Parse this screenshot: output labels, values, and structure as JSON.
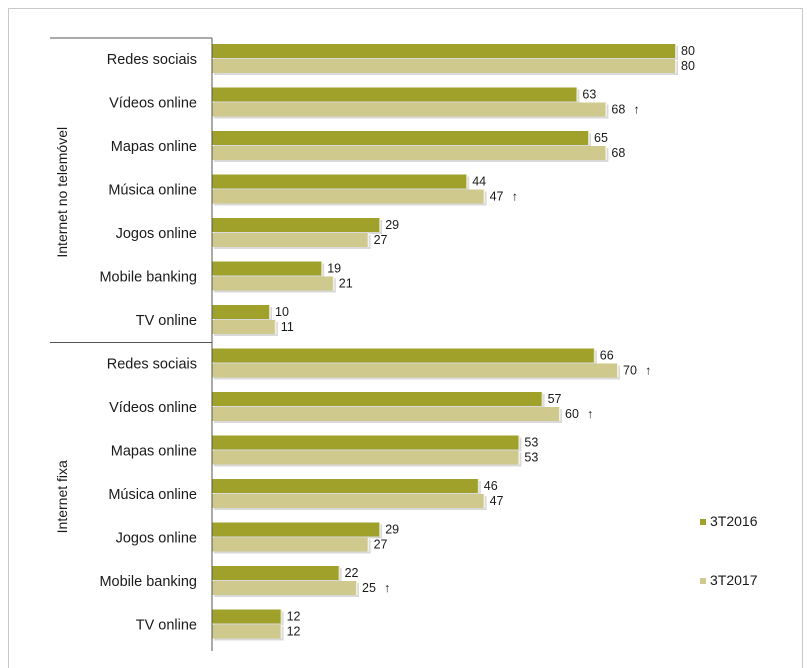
{
  "chart_data": {
    "type": "bar",
    "orientation": "horizontal",
    "title": "",
    "legend_position": "right",
    "grid": false,
    "series": [
      {
        "name": "3T2016",
        "color": "#a0a12a"
      },
      {
        "name": "3T2017",
        "color": "#cfc98d"
      }
    ],
    "groups": [
      {
        "label": "Internet no telemóvel",
        "categories": [
          {
            "label": "Redes sociais",
            "values": [
              80,
              80
            ],
            "arrow": [
              false,
              false
            ]
          },
          {
            "label": "Vídeos online",
            "values": [
              63,
              68
            ],
            "arrow": [
              false,
              true
            ]
          },
          {
            "label": "Mapas online",
            "values": [
              65,
              68
            ],
            "arrow": [
              false,
              false
            ]
          },
          {
            "label": "Música online",
            "values": [
              44,
              47
            ],
            "arrow": [
              false,
              true
            ]
          },
          {
            "label": "Jogos online",
            "values": [
              29,
              27
            ],
            "arrow": [
              false,
              false
            ]
          },
          {
            "label": "Mobile banking",
            "values": [
              19,
              21
            ],
            "arrow": [
              false,
              false
            ]
          },
          {
            "label": "TV online",
            "values": [
              10,
              11
            ],
            "arrow": [
              false,
              false
            ]
          }
        ]
      },
      {
        "label": "Internet fixa",
        "categories": [
          {
            "label": "Redes sociais",
            "values": [
              66,
              70
            ],
            "arrow": [
              false,
              true
            ]
          },
          {
            "label": "Vídeos online",
            "values": [
              57,
              60
            ],
            "arrow": [
              false,
              true
            ]
          },
          {
            "label": "Mapas online",
            "values": [
              53,
              53
            ],
            "arrow": [
              false,
              false
            ]
          },
          {
            "label": "Música online",
            "values": [
              46,
              47
            ],
            "arrow": [
              false,
              false
            ]
          },
          {
            "label": "Jogos online",
            "values": [
              29,
              27
            ],
            "arrow": [
              false,
              false
            ]
          },
          {
            "label": "Mobile banking",
            "values": [
              22,
              25
            ],
            "arrow": [
              false,
              true
            ]
          },
          {
            "label": "TV online",
            "values": [
              12,
              12
            ],
            "arrow": [
              false,
              false
            ]
          }
        ]
      }
    ],
    "arrow_symbol": "↑"
  }
}
